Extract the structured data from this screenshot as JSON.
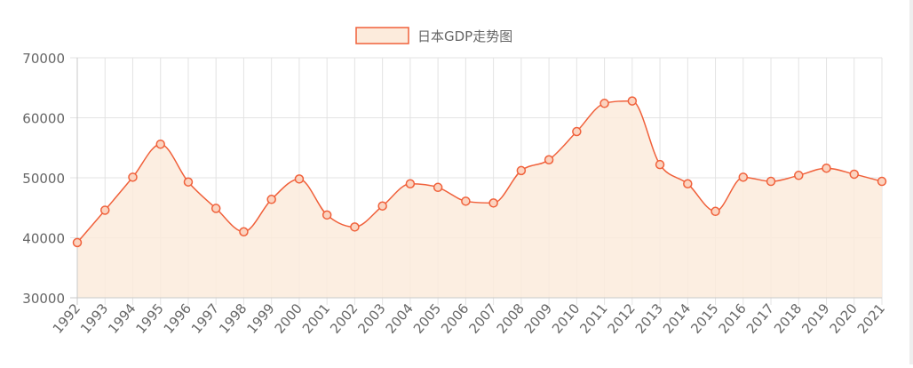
{
  "chart_data": {
    "type": "line",
    "title": "",
    "xlabel": "",
    "ylabel": "",
    "ylim": [
      30000,
      70000
    ],
    "yticks": [
      "70000",
      "60000",
      "50000",
      "40000",
      "30000"
    ],
    "legend_position": "top-center",
    "grid": true,
    "fill": true,
    "smooth": true,
    "colors": {
      "line": "#f0603a",
      "fill": "#fcebdc",
      "grid": "#e3e3e3",
      "axis_text": "#666666"
    },
    "categories": [
      "1992",
      "1993",
      "1994",
      "1995",
      "1996",
      "1997",
      "1998",
      "1999",
      "2000",
      "2001",
      "2002",
      "2003",
      "2004",
      "2005",
      "2006",
      "2007",
      "2008",
      "2009",
      "2010",
      "2011",
      "2012",
      "2013",
      "2014",
      "2015",
      "2016",
      "2017",
      "2018",
      "2019",
      "2020",
      "2021"
    ],
    "series": [
      {
        "name": "日本GDP走势图",
        "values": [
          39200,
          44600,
          50100,
          55600,
          49300,
          44900,
          41000,
          46400,
          49800,
          43800,
          41800,
          45300,
          49000,
          48400,
          46100,
          45800,
          51200,
          53000,
          57700,
          62400,
          62800,
          52200,
          49000,
          44400,
          50100,
          49400,
          50400,
          51600,
          50600,
          49400
        ]
      }
    ]
  }
}
